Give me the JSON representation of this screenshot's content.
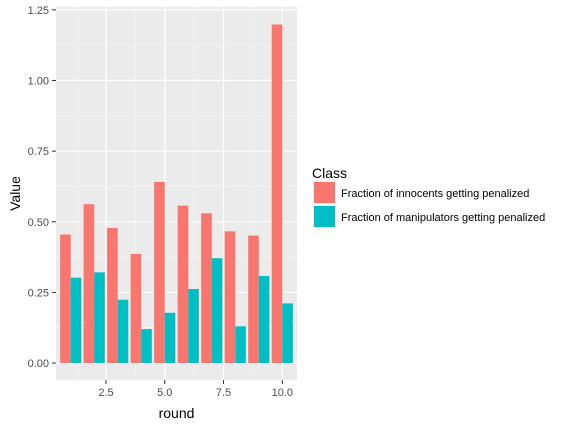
{
  "chart_data": {
    "type": "bar",
    "xlabel": "round",
    "ylabel": "Value",
    "x": [
      1,
      2,
      3,
      4,
      5,
      6,
      7,
      8,
      9,
      10
    ],
    "xticks": [
      2.5,
      5.0,
      7.5,
      10.0
    ],
    "xtick_labels": [
      "2.5",
      "5.0",
      "7.5",
      "10.0"
    ],
    "yticks": [
      0,
      0.25,
      0.5,
      0.75,
      1.0,
      1.25
    ],
    "ytick_labels": [
      "0.00",
      "0.25",
      "0.50",
      "0.75",
      "1.00",
      "1.25"
    ],
    "xlim": [
      0.375,
      10.625
    ],
    "ylim": [
      -0.06,
      1.26
    ],
    "grid": true,
    "legend": {
      "title": "Class",
      "position": "right"
    },
    "series": [
      {
        "name": "Fraction of innocents getting penalized",
        "color": "#F8766D",
        "values": [
          0.455,
          0.562,
          0.478,
          0.386,
          0.641,
          0.557,
          0.53,
          0.466,
          0.451,
          1.198
        ]
      },
      {
        "name": "Fraction of manipulators getting penalized",
        "color": "#00BFC4",
        "values": [
          0.302,
          0.321,
          0.224,
          0.12,
          0.178,
          0.262,
          0.371,
          0.13,
          0.308,
          0.211
        ]
      }
    ]
  }
}
